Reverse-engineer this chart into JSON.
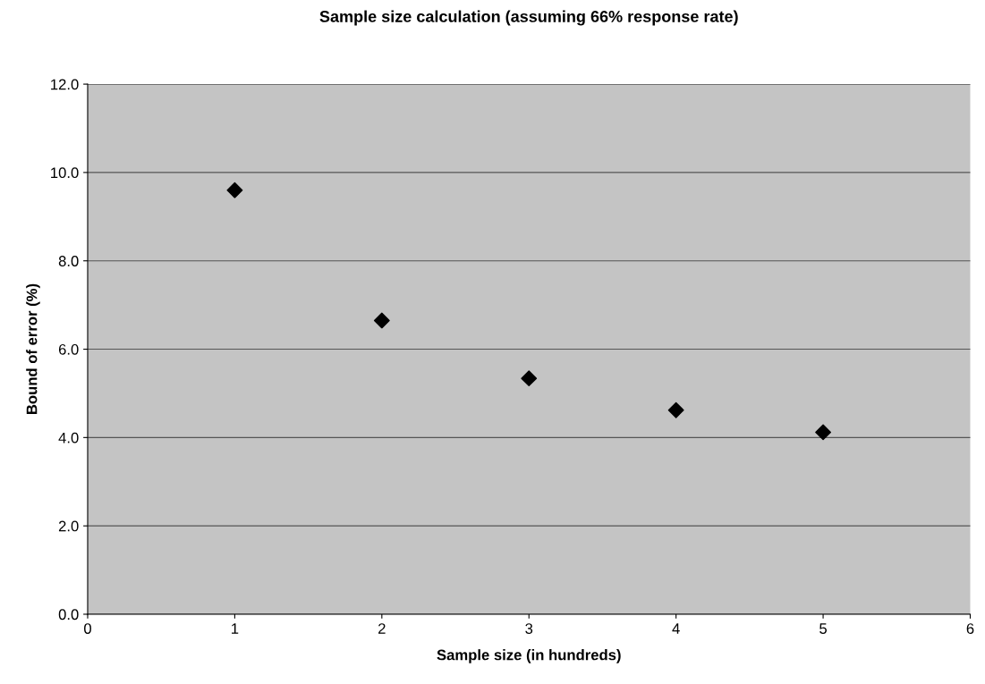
{
  "chart_data": {
    "type": "scatter",
    "title": "Sample size calculation (assuming 66% response rate)",
    "xlabel": "Sample size (in hundreds)",
    "ylabel": "Bound of error (%)",
    "x": [
      1,
      2,
      3,
      4,
      5
    ],
    "series": [
      {
        "color": "#000000",
        "values": [
          9.6,
          6.65,
          5.34,
          4.62,
          4.12
        ]
      }
    ],
    "xlim": [
      0,
      6
    ],
    "xticks": [
      0,
      1,
      2,
      3,
      4,
      5,
      6
    ],
    "ylim": [
      0,
      12
    ],
    "yticks": [
      {
        "value": 0,
        "label": "0.0"
      },
      {
        "value": 2,
        "label": "2.0"
      },
      {
        "value": 4,
        "label": "4.0"
      },
      {
        "value": 6,
        "label": "6.0"
      },
      {
        "value": 8,
        "label": "8.0"
      },
      {
        "value": 10,
        "label": "10.0"
      },
      {
        "value": 12,
        "label": "12.0"
      }
    ],
    "grid": "y",
    "marker": "diamond"
  }
}
